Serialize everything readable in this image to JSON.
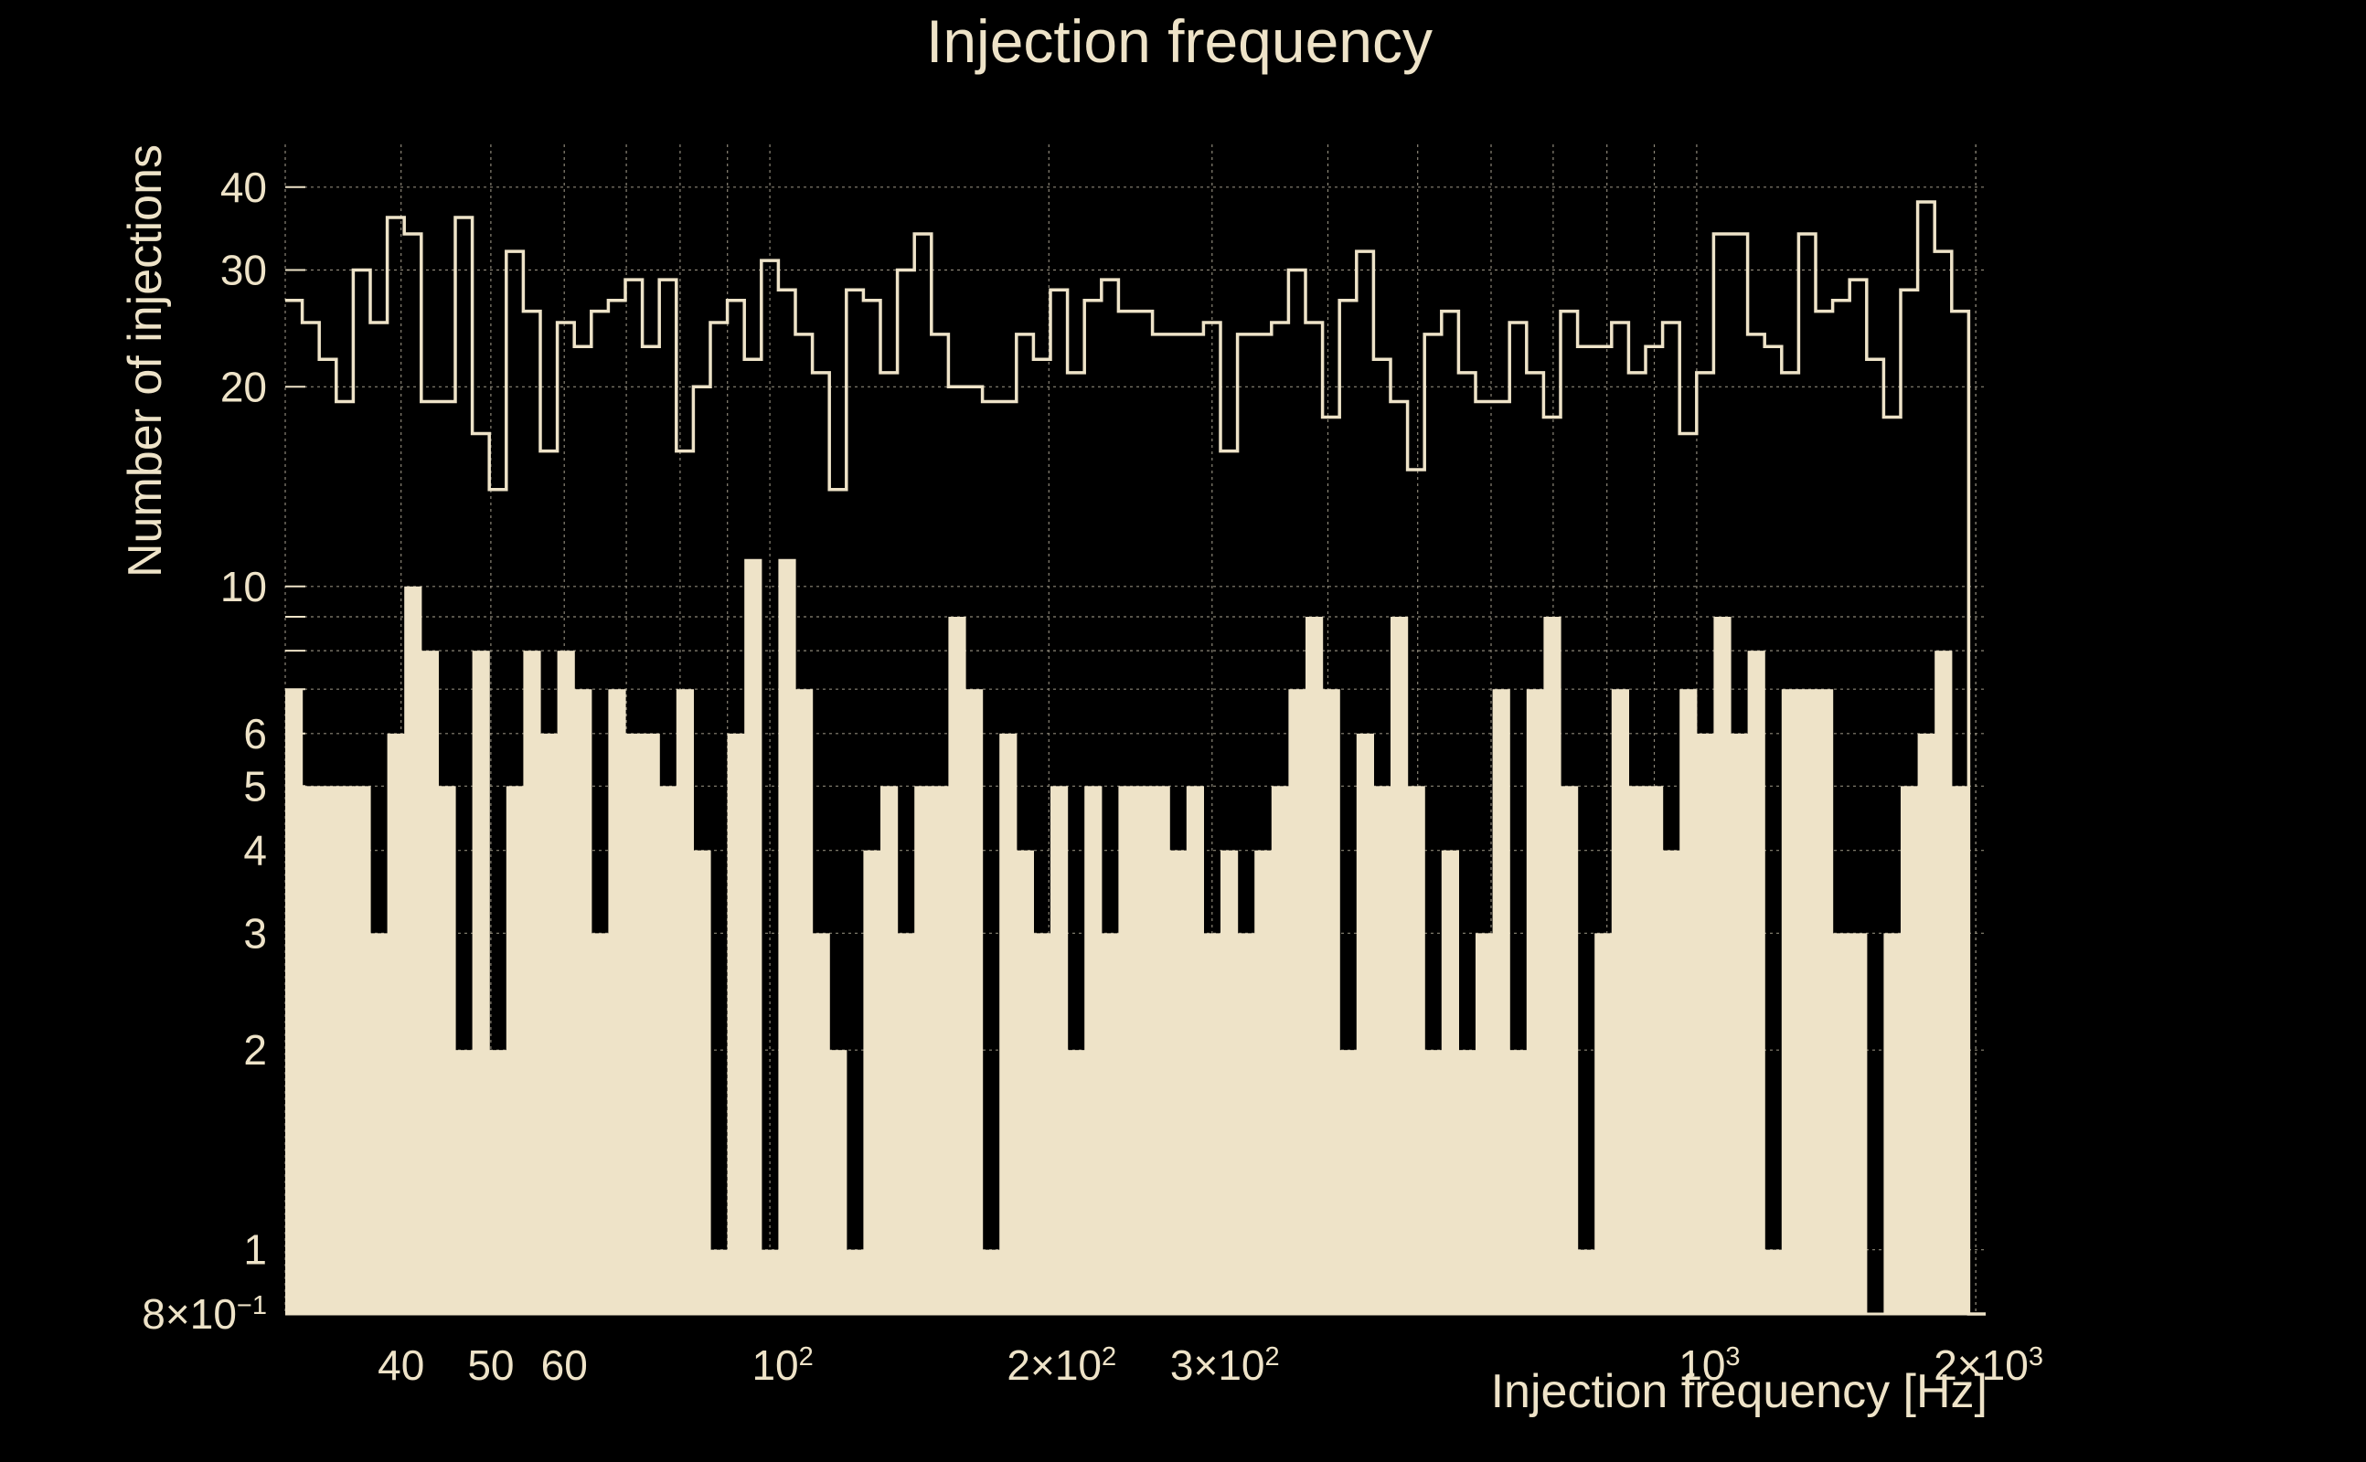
{
  "chart_data": {
    "type": "histogram",
    "title": "Injection frequency",
    "xlabel": "Injection frequency [Hz]",
    "ylabel": "Number of injections",
    "x_scale": "log",
    "y_scale": "log",
    "xlim": [
      30,
      2050
    ],
    "ylim": [
      0.8,
      43
    ],
    "grid": true,
    "colors": {
      "background": "#000000",
      "foreground": "#eee3c8",
      "grid": "#8c8677"
    },
    "x_ticks": [
      {
        "value": 40,
        "base": "40",
        "exp": ""
      },
      {
        "value": 50,
        "base": "50",
        "exp": ""
      },
      {
        "value": 60,
        "base": "60",
        "exp": ""
      },
      {
        "value": 100,
        "base": "10",
        "exp": "2"
      },
      {
        "value": 200,
        "base": "2×10",
        "exp": "2"
      },
      {
        "value": 300,
        "base": "3×10",
        "exp": "2"
      },
      {
        "value": 1000,
        "base": "10",
        "exp": "3"
      },
      {
        "value": 2000,
        "base": "2×10",
        "exp": "3"
      }
    ],
    "y_ticks": [
      {
        "value": 0.8,
        "base": "8×10",
        "exp": "−1"
      },
      {
        "value": 1,
        "base": "1",
        "exp": ""
      },
      {
        "value": 2,
        "base": "2",
        "exp": ""
      },
      {
        "value": 3,
        "base": "3",
        "exp": ""
      },
      {
        "value": 4,
        "base": "4",
        "exp": ""
      },
      {
        "value": 5,
        "base": "5",
        "exp": ""
      },
      {
        "value": 6,
        "base": "6",
        "exp": ""
      },
      {
        "value": 10,
        "base": "10",
        "exp": ""
      },
      {
        "value": 20,
        "base": "20",
        "exp": ""
      },
      {
        "value": 30,
        "base": "30",
        "exp": ""
      },
      {
        "value": 40,
        "base": "40",
        "exp": ""
      }
    ],
    "bins": 100,
    "series": [
      {
        "name": "filled",
        "style": "filled",
        "values": [
          7,
          5,
          5,
          5,
          5,
          3,
          6,
          10,
          8,
          5,
          2,
          8,
          2,
          5,
          8,
          6,
          8,
          7,
          3,
          7,
          6,
          6,
          5,
          7,
          4,
          1,
          6,
          11,
          1,
          11,
          7,
          3,
          2,
          1,
          4,
          5,
          3,
          5,
          5,
          9,
          7,
          1,
          6,
          4,
          3,
          5,
          2,
          5,
          3,
          5,
          5,
          5,
          4,
          5,
          3,
          4,
          3,
          4,
          5,
          7,
          9,
          7,
          2,
          6,
          5,
          9,
          5,
          2,
          4,
          2,
          3,
          7,
          2,
          7,
          9,
          5,
          1,
          3,
          7,
          5,
          5,
          4,
          7,
          6,
          9,
          6,
          8,
          1,
          7,
          7,
          7,
          3,
          3,
          0.8,
          3,
          5,
          6,
          8,
          5,
          0.8
        ]
      },
      {
        "name": "outline",
        "style": "step",
        "values": [
          27,
          25,
          22,
          19,
          30,
          25,
          36,
          34,
          19,
          19,
          36,
          17,
          14,
          32,
          26,
          16,
          25,
          23,
          26,
          27,
          29,
          23,
          29,
          16,
          20,
          25,
          27,
          22,
          31,
          28,
          24,
          21,
          14,
          28,
          27,
          21,
          30,
          34,
          24,
          20,
          20,
          19,
          19,
          24,
          22,
          28,
          21,
          27,
          29,
          26,
          26,
          24,
          24,
          24,
          25,
          16,
          24,
          24,
          25,
          30,
          25,
          18,
          27,
          32,
          22,
          19,
          15,
          24,
          26,
          21,
          19,
          19,
          25,
          21,
          18,
          26,
          23,
          23,
          25,
          21,
          23,
          25,
          17,
          21,
          34,
          34,
          24,
          23,
          21,
          34,
          26,
          27,
          29,
          22,
          18,
          28,
          38,
          32,
          26,
          0.8
        ]
      }
    ]
  }
}
